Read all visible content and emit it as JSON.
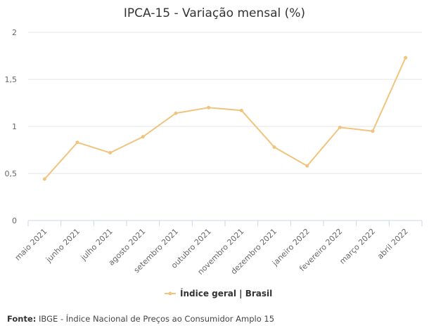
{
  "chart_data": {
    "type": "line",
    "title": "IPCA-15 - Variação mensal (%)",
    "categories": [
      "maio 2021",
      "junho 2021",
      "julho 2021",
      "agosto 2021",
      "setembro 2021",
      "outubro 2021",
      "novembro 2021",
      "dezembro 2021",
      "janeiro 2022",
      "fevereiro 2022",
      "março 2022",
      "abril 2022"
    ],
    "series": [
      {
        "name": "Índice geral | Brasil",
        "color": "#f0c47d",
        "values": [
          0.44,
          0.83,
          0.72,
          0.89,
          1.14,
          1.2,
          1.17,
          0.78,
          0.58,
          0.99,
          0.95,
          1.73
        ]
      }
    ],
    "yticks": [
      {
        "value": 0,
        "label": "0"
      },
      {
        "value": 0.5,
        "label": "0,5"
      },
      {
        "value": 1,
        "label": "1"
      },
      {
        "value": 1.5,
        "label": "1,5"
      },
      {
        "value": 2,
        "label": "2"
      }
    ],
    "ylim": [
      0,
      2
    ],
    "xlabel": "",
    "ylabel": "",
    "grid": true,
    "legend_position": "bottom-center"
  },
  "source": {
    "label": "Fonte:",
    "text": "IBGE - Índice Nacional de Preços ao Consumidor Amplo 15"
  },
  "colors": {
    "grid": "#e6e6e6",
    "axis": "#ccd6eb",
    "line": "#f0c47d"
  }
}
